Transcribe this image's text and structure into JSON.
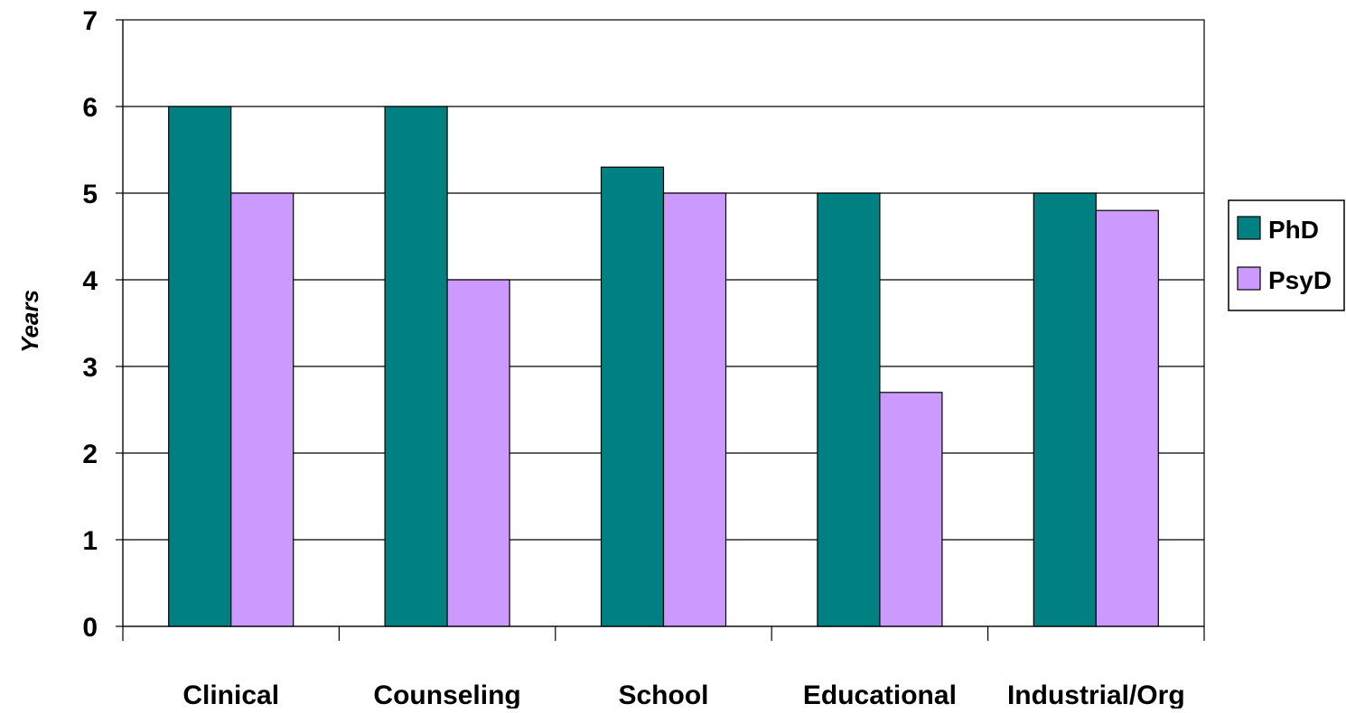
{
  "chart_data": {
    "type": "bar",
    "title": "",
    "xlabel": "",
    "ylabel": "Years",
    "ylim": [
      0,
      7
    ],
    "yticks": [
      0,
      1,
      2,
      3,
      4,
      5,
      6,
      7
    ],
    "grid": true,
    "legend_position": "right",
    "categories": [
      "Clinical",
      "Counseling",
      "School",
      "Educational",
      "Industrial/Org"
    ],
    "series": [
      {
        "name": "PhD",
        "color": "#008080",
        "values": [
          6,
          6,
          5.3,
          5,
          5
        ]
      },
      {
        "name": "PsyD",
        "color": "#CC99FF",
        "values": [
          5,
          4,
          5,
          2.7,
          4.8
        ]
      }
    ]
  }
}
